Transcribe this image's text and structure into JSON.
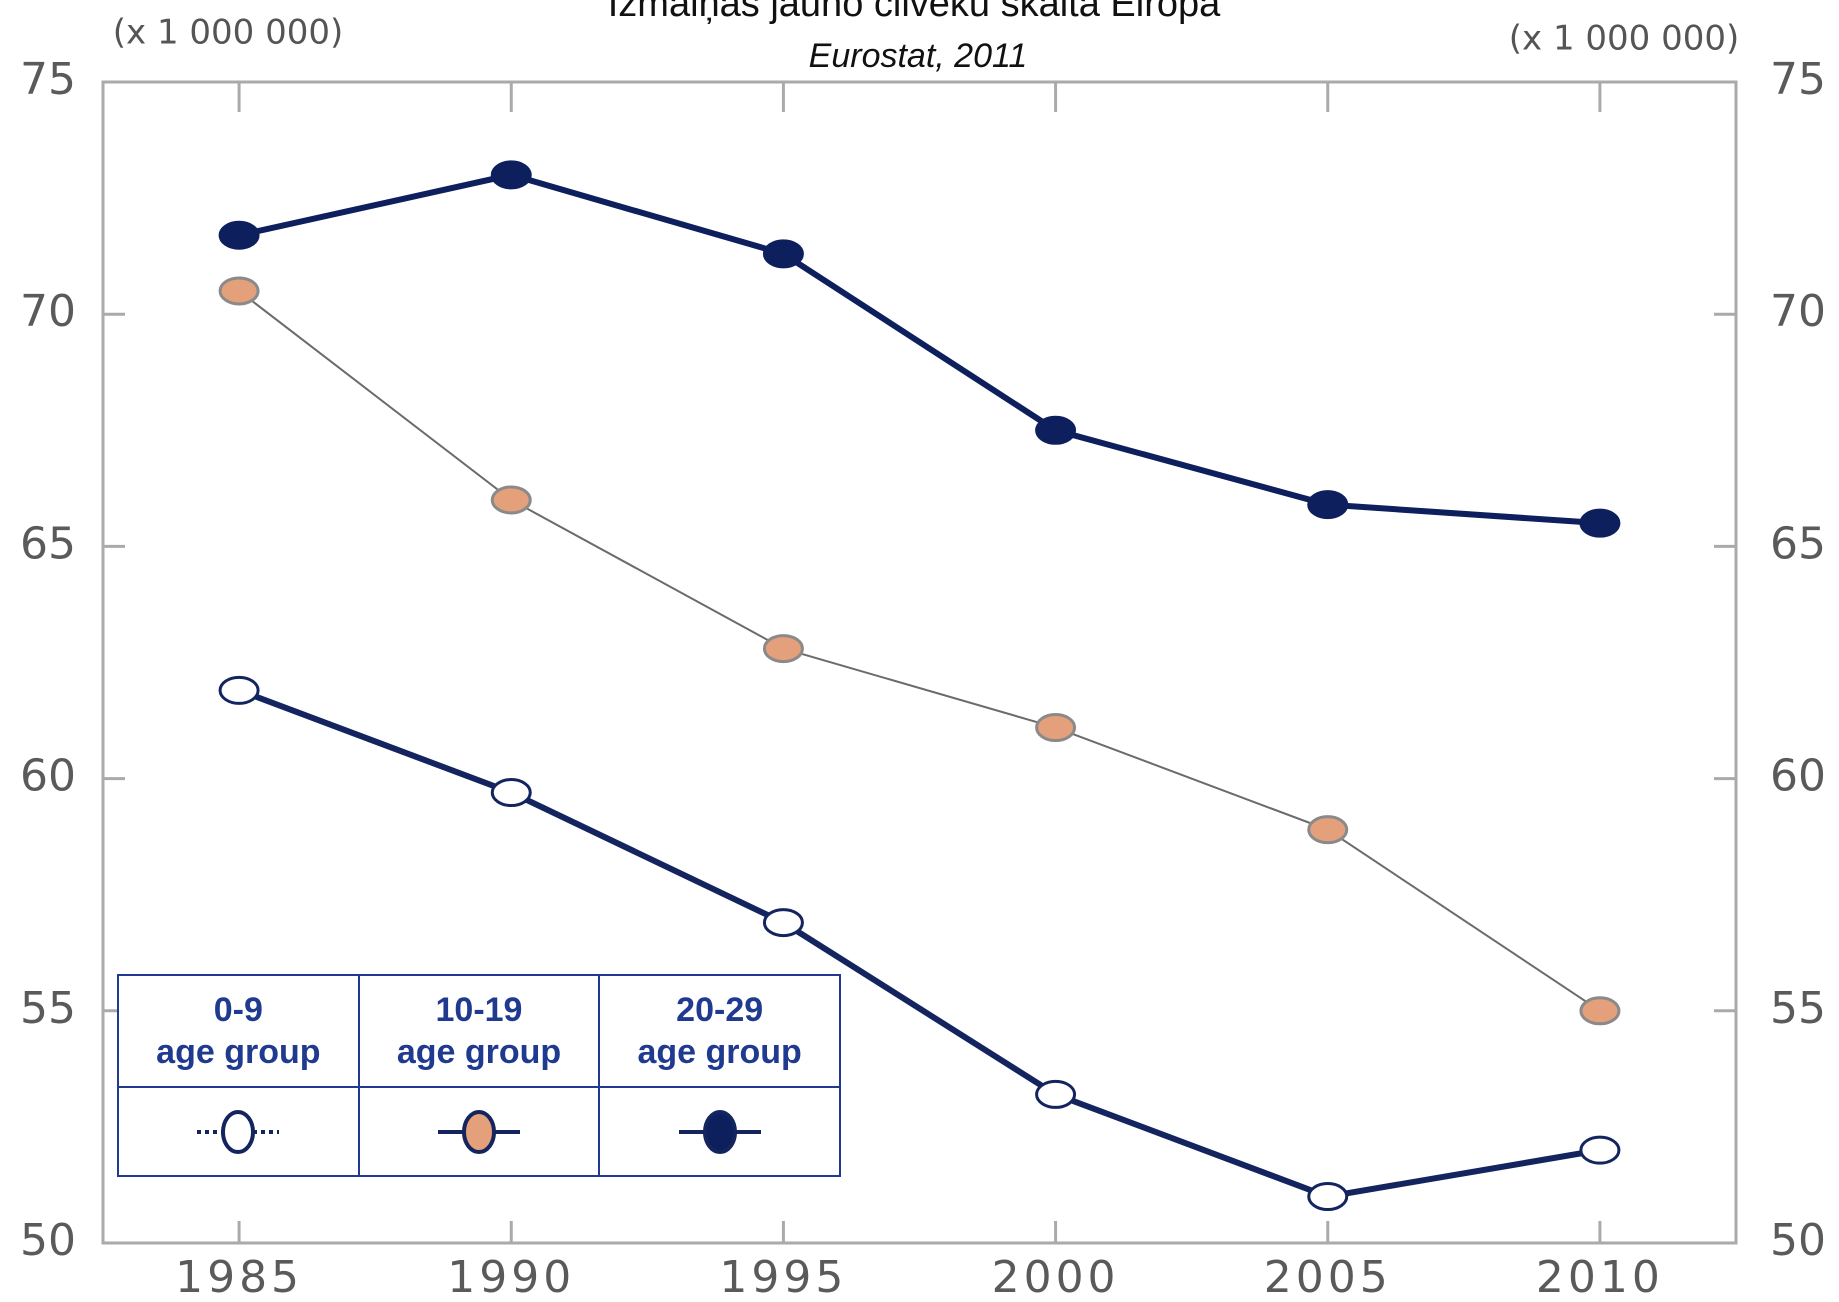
{
  "chart_data": {
    "type": "line",
    "title": "Izmaiņas jauno cilvēku skaitā Eiropā",
    "subtitle": "Eurostat, 2011",
    "y_unit_left": "(x 1 000 000)",
    "y_unit_right": "(x 1 000 000)",
    "x": [
      1985,
      1990,
      1995,
      2000,
      2005,
      2010
    ],
    "xlim": [
      1982.5,
      2012.5
    ],
    "xticks": [
      1985,
      1990,
      1995,
      2000,
      2005,
      2010
    ],
    "ylim": [
      50,
      75
    ],
    "yticks": [
      50,
      55,
      60,
      65,
      70,
      75
    ],
    "series": [
      {
        "name": "0-9\nage group",
        "color": "#13245e",
        "marker_fill": "#ffffff",
        "values": [
          61.9,
          59.7,
          56.9,
          53.2,
          51.0,
          52.0
        ]
      },
      {
        "name": "10-19\nage group",
        "color": "#e3a07a",
        "values": [
          70.5,
          66.0,
          62.8,
          61.1,
          58.9,
          55.0
        ]
      },
      {
        "name": "20-29\nage group",
        "color": "#0d1f5c",
        "values": [
          71.7,
          73.0,
          71.3,
          67.5,
          65.9,
          65.5
        ]
      }
    ]
  }
}
